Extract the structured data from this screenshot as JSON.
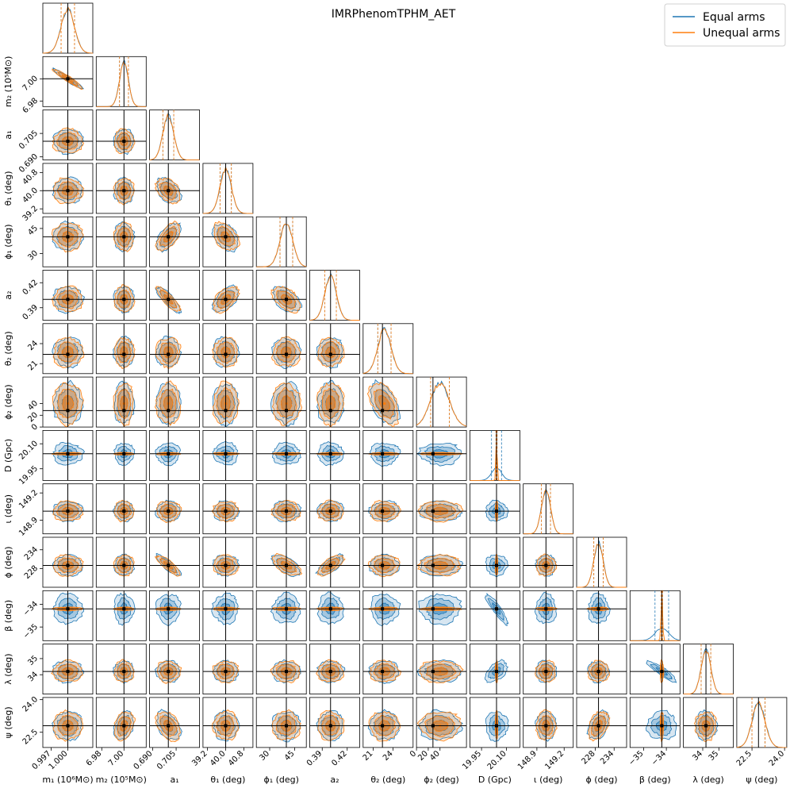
{
  "chart_data": {
    "type": "corner",
    "title": "IMRPhenomTPHM_AET",
    "legend": {
      "position": "top-right",
      "entries": [
        {
          "name": "Equal arms",
          "color": "#1f77b4"
        },
        {
          "name": "Unequal arms",
          "color": "#ff7f0e"
        }
      ]
    },
    "series": [
      {
        "name": "Equal arms",
        "color": "#1f77b4"
      },
      {
        "name": "Unequal arms",
        "color": "#ff7f0e"
      }
    ],
    "parameters": [
      {
        "name": "m1",
        "label": "m₁ (10⁶M⊙)",
        "range": [
          0.9955,
          1.0045
        ],
        "truth": 1.0,
        "ticks": [
          0.997,
          1.0
        ],
        "tick_labels": [
          "0.997",
          "1.000"
        ],
        "std": 0.0012,
        "offset": [
          0,
          0
        ]
      },
      {
        "name": "m2",
        "label": "m₂ (10⁵M⊙)",
        "range": [
          6.975,
          7.02
        ],
        "truth": 7.0,
        "ticks": [
          6.98,
          7.0
        ],
        "tick_labels": [
          "6.98",
          "7.00"
        ],
        "std": 0.004,
        "offset": [
          0,
          0
        ]
      },
      {
        "name": "a1",
        "label": "a₁",
        "range": [
          0.688,
          0.72
        ],
        "truth": 0.7,
        "ticks": [
          0.69,
          0.705
        ],
        "tick_labels": [
          "0.690",
          "0.705"
        ],
        "std": 0.0035,
        "offset": [
          0,
          0
        ]
      },
      {
        "name": "theta1",
        "label": "θ₁ (deg)",
        "range": [
          39.0,
          41.2
        ],
        "truth": 40.0,
        "ticks": [
          39.2,
          40.0,
          40.8
        ],
        "tick_labels": [
          "39.2",
          "40.0",
          "40.8"
        ],
        "std": 0.25,
        "offset": [
          0,
          0
        ]
      },
      {
        "name": "phi1",
        "label": "ϕ₁ (deg)",
        "range": [
          22,
          52
        ],
        "truth": 40,
        "ticks": [
          30,
          45
        ],
        "tick_labels": [
          "30",
          "45"
        ],
        "std": 3.8,
        "offset": [
          0,
          0
        ]
      },
      {
        "name": "a2",
        "label": "a₂",
        "range": [
          0.375,
          0.435
        ],
        "truth": 0.4,
        "ticks": [
          0.39,
          0.42
        ],
        "tick_labels": [
          "0.39",
          "0.42"
        ],
        "std": 0.007,
        "offset": [
          0,
          0
        ]
      },
      {
        "name": "theta2",
        "label": "θ₂ (deg)",
        "range": [
          19.5,
          27
        ],
        "truth": 22.4,
        "ticks": [
          21,
          24
        ],
        "tick_labels": [
          "21",
          "24"
        ],
        "std": 1.0,
        "offset": [
          0.3,
          0.3
        ]
      },
      {
        "name": "phi2",
        "label": "ϕ₂ (deg)",
        "range": [
          0,
          85
        ],
        "truth": 28,
        "ticks": [
          0,
          20,
          40
        ],
        "tick_labels": [
          "0",
          "20",
          "40"
        ],
        "std": 16,
        "offset": [
          12,
          12
        ]
      },
      {
        "name": "D",
        "label": "D (Gpc)",
        "range": [
          19.88,
          20.18
        ],
        "truth": 20.04,
        "ticks": [
          19.95,
          20.1
        ],
        "tick_labels": [
          "19.95",
          "20.10"
        ],
        "std": 0.03,
        "offset": [
          0,
          0
        ]
      },
      {
        "name": "iota",
        "label": "ι (deg)",
        "range": [
          148.75,
          149.3
        ],
        "truth": 149.0,
        "ticks": [
          148.9,
          149.2
        ],
        "tick_labels": [
          "148.9",
          "149.2"
        ],
        "std": 0.05,
        "offset": [
          0,
          0
        ]
      },
      {
        "name": "phi",
        "label": "ϕ (deg)",
        "range": [
          222,
          238
        ],
        "truth": 229,
        "ticks": [
          228,
          234
        ],
        "tick_labels": [
          "228",
          "234"
        ],
        "std": 1.5,
        "offset": [
          0,
          0
        ]
      },
      {
        "name": "beta",
        "label": "β (deg)",
        "range": [
          -35.6,
          -33.4
        ],
        "truth": -34.2,
        "ticks": [
          -35,
          -34
        ],
        "tick_labels": [
          "−35",
          "−34"
        ],
        "std": 0.3,
        "offset": [
          0,
          0
        ]
      },
      {
        "name": "lambda",
        "label": "λ (deg)",
        "range": [
          32.8,
          35.9
        ],
        "truth": 34.2,
        "ticks": [
          34,
          35
        ],
        "tick_labels": [
          "34",
          "35"
        ],
        "std": 0.3,
        "offset": [
          0,
          0
        ]
      },
      {
        "name": "psi",
        "label": "ψ (deg)",
        "range": [
          21.8,
          24.1
        ],
        "truth": 22.8,
        "ticks": [
          22.5,
          24.0
        ],
        "tick_labels": [
          "22.5",
          "24.0"
        ],
        "std": 0.3,
        "offset": [
          0,
          0
        ]
      }
    ],
    "correlations": [
      {
        "pair": [
          "m1",
          "m2"
        ],
        "rho": -0.95
      },
      {
        "pair": [
          "a1",
          "theta1"
        ],
        "rho": -0.4
      },
      {
        "pair": [
          "a1",
          "phi1"
        ],
        "rho": 0.6
      },
      {
        "pair": [
          "a1",
          "a2"
        ],
        "rho": -0.85
      },
      {
        "pair": [
          "a1",
          "phi"
        ],
        "rho": -0.85
      },
      {
        "pair": [
          "theta1",
          "phi1"
        ],
        "rho": -0.4
      },
      {
        "pair": [
          "theta1",
          "a2"
        ],
        "rho": 0.5
      },
      {
        "pair": [
          "phi1",
          "a2"
        ],
        "rho": -0.5
      },
      {
        "pair": [
          "phi1",
          "phi"
        ],
        "rho": -0.6
      },
      {
        "pair": [
          "a2",
          "phi"
        ],
        "rho": 0.7
      },
      {
        "pair": [
          "theta2",
          "phi2"
        ],
        "rho": -0.5
      },
      {
        "pair": [
          "D",
          "beta"
        ],
        "rho": -0.9
      },
      {
        "pair": [
          "D",
          "lambda"
        ],
        "rho": 0.5
      },
      {
        "pair": [
          "beta",
          "lambda"
        ],
        "rho": -0.9
      },
      {
        "pair": [
          "m2",
          "psi"
        ],
        "rho": 0.3
      },
      {
        "pair": [
          "a1",
          "psi"
        ],
        "rho": -0.4
      },
      {
        "pair": [
          "phi",
          "psi"
        ],
        "rho": 0.4
      }
    ],
    "unequal_arms_degenerate": {
      "parameters": [
        "D",
        "beta"
      ],
      "note": "orange posterior collapses to a thin line in D and beta"
    },
    "quantile_lines": "dashed lines at 16th and 84th percentiles; solid truth lines in black"
  }
}
